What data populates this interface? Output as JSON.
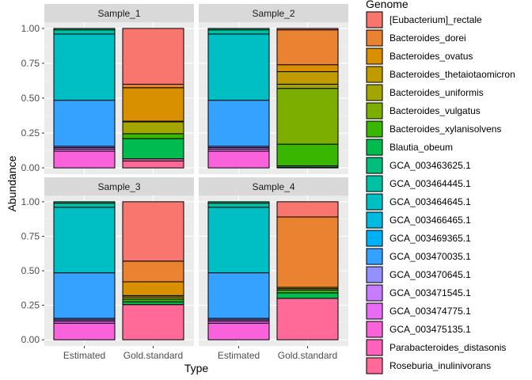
{
  "chart_data": {
    "type": "bar",
    "stacked": true,
    "xlabel": "Type",
    "ylabel": "Abundance",
    "categories": [
      "Estimated",
      "Gold.standard"
    ],
    "ylim": [
      0,
      1
    ],
    "yticks": [
      "0.00",
      "0.25",
      "0.50",
      "0.75",
      "1.00"
    ],
    "legend": {
      "title": "Genome",
      "position": "right",
      "entries": [
        {
          "name": "[Eubacterium]_rectale",
          "color": "#F8766D"
        },
        {
          "name": "Bacteroides_dorei",
          "color": "#EA8331"
        },
        {
          "name": "Bacteroides_ovatus",
          "color": "#D89000"
        },
        {
          "name": "Bacteroides_thetaiotaomicron",
          "color": "#C09B00"
        },
        {
          "name": "Bacteroides_uniformis",
          "color": "#A3A500"
        },
        {
          "name": "Bacteroides_vulgatus",
          "color": "#7CAE00"
        },
        {
          "name": "Bacteroides_xylanisolvens",
          "color": "#39B600"
        },
        {
          "name": "Blautia_obeum",
          "color": "#00BB4E"
        },
        {
          "name": "GCA_003463625.1",
          "color": "#00BF7D"
        },
        {
          "name": "GCA_003464445.1",
          "color": "#00C1A3"
        },
        {
          "name": "GCA_003464645.1",
          "color": "#00BFC4"
        },
        {
          "name": "GCA_003466465.1",
          "color": "#00BAE0"
        },
        {
          "name": "GCA_003469365.1",
          "color": "#00B0F6"
        },
        {
          "name": "GCA_003470035.1",
          "color": "#35A2FF"
        },
        {
          "name": "GCA_003470645.1",
          "color": "#9590FF"
        },
        {
          "name": "GCA_003471545.1",
          "color": "#C77CFF"
        },
        {
          "name": "GCA_003474775.1",
          "color": "#E76BF3"
        },
        {
          "name": "GCA_003475135.1",
          "color": "#FA62DB"
        },
        {
          "name": "Parabacteroides_distasonis",
          "color": "#FF62BC"
        },
        {
          "name": "Roseburia_inulinivorans",
          "color": "#FF6A98"
        }
      ]
    },
    "panels": [
      {
        "title": "Sample_1",
        "bars": {
          "Estimated": [
            {
              "genome": "GCA_003475135.1",
              "value": 0.12
            },
            {
              "genome": "GCA_003474775.1",
              "value": 0.015
            },
            {
              "genome": "GCA_003471545.1",
              "value": 0.01
            },
            {
              "genome": "GCA_003470645.1",
              "value": 0.01
            },
            {
              "genome": "GCA_003470035.1",
              "value": 0.33
            },
            {
              "genome": "GCA_003464645.1",
              "value": 0.475
            },
            {
              "genome": "GCA_003464445.1",
              "value": 0.03
            },
            {
              "genome": "GCA_003463625.1",
              "value": 0.01
            }
          ],
          "Gold.standard": [
            {
              "genome": "Roseburia_inulinivorans",
              "value": 0.05
            },
            {
              "genome": "Parabacteroides_distasonis",
              "value": 0.015
            },
            {
              "genome": "Blautia_obeum",
              "value": 0.145
            },
            {
              "genome": "Bacteroides_xylanisolvens",
              "value": 0.035
            },
            {
              "genome": "Bacteroides_uniformis",
              "value": 0.085
            },
            {
              "genome": "Bacteroides_thetaiotaomicron",
              "value": 0.005
            },
            {
              "genome": "Bacteroides_ovatus",
              "value": 0.24
            },
            {
              "genome": "Bacteroides_dorei",
              "value": 0.025
            },
            {
              "genome": "[Eubacterium]_rectale",
              "value": 0.4
            }
          ]
        }
      },
      {
        "title": "Sample_2",
        "bars": {
          "Estimated": [
            {
              "genome": "GCA_003475135.1",
              "value": 0.12
            },
            {
              "genome": "GCA_003474775.1",
              "value": 0.015
            },
            {
              "genome": "GCA_003471545.1",
              "value": 0.01
            },
            {
              "genome": "GCA_003470645.1",
              "value": 0.01
            },
            {
              "genome": "GCA_003470035.1",
              "value": 0.33
            },
            {
              "genome": "GCA_003464645.1",
              "value": 0.475
            },
            {
              "genome": "GCA_003464445.1",
              "value": 0.03
            },
            {
              "genome": "GCA_003463625.1",
              "value": 0.01
            }
          ],
          "Gold.standard": [
            {
              "genome": "Blautia_obeum",
              "value": 0.01
            },
            {
              "genome": "Parabacteroides_distasonis",
              "value": 0.005
            },
            {
              "genome": "Bacteroides_xylanisolvens",
              "value": 0.155
            },
            {
              "genome": "Bacteroides_vulgatus",
              "value": 0.4
            },
            {
              "genome": "Bacteroides_uniformis",
              "value": 0.03
            },
            {
              "genome": "Bacteroides_thetaiotaomicron",
              "value": 0.09
            },
            {
              "genome": "Bacteroides_ovatus",
              "value": 0.05
            },
            {
              "genome": "Bacteroides_dorei",
              "value": 0.25
            },
            {
              "genome": "[Eubacterium]_rectale",
              "value": 0.01
            }
          ]
        }
      },
      {
        "title": "Sample_3",
        "bars": {
          "Estimated": [
            {
              "genome": "GCA_003475135.1",
              "value": 0.12
            },
            {
              "genome": "GCA_003474775.1",
              "value": 0.015
            },
            {
              "genome": "GCA_003471545.1",
              "value": 0.01
            },
            {
              "genome": "GCA_003470645.1",
              "value": 0.01
            },
            {
              "genome": "GCA_003470035.1",
              "value": 0.33
            },
            {
              "genome": "GCA_003464645.1",
              "value": 0.475
            },
            {
              "genome": "GCA_003464445.1",
              "value": 0.03
            },
            {
              "genome": "GCA_003463625.1",
              "value": 0.01
            }
          ],
          "Gold.standard": [
            {
              "genome": "Roseburia_inulinivorans",
              "value": 0.255
            },
            {
              "genome": "Blautia_obeum",
              "value": 0.02
            },
            {
              "genome": "Bacteroides_xylanisolvens",
              "value": 0.02
            },
            {
              "genome": "Bacteroides_uniformis",
              "value": 0.015
            },
            {
              "genome": "Bacteroides_thetaiotaomicron",
              "value": 0.01
            },
            {
              "genome": "Bacteroides_ovatus",
              "value": 0.1
            },
            {
              "genome": "Bacteroides_dorei",
              "value": 0.15
            },
            {
              "genome": "[Eubacterium]_rectale",
              "value": 0.43
            }
          ]
        }
      },
      {
        "title": "Sample_4",
        "bars": {
          "Estimated": [
            {
              "genome": "GCA_003475135.1",
              "value": 0.12
            },
            {
              "genome": "GCA_003474775.1",
              "value": 0.015
            },
            {
              "genome": "GCA_003471545.1",
              "value": 0.01
            },
            {
              "genome": "GCA_003470645.1",
              "value": 0.01
            },
            {
              "genome": "GCA_003470035.1",
              "value": 0.33
            },
            {
              "genome": "GCA_003464645.1",
              "value": 0.475
            },
            {
              "genome": "GCA_003464445.1",
              "value": 0.03
            },
            {
              "genome": "GCA_003463625.1",
              "value": 0.01
            }
          ],
          "Gold.standard": [
            {
              "genome": "Roseburia_inulinivorans",
              "value": 0.3
            },
            {
              "genome": "Blautia_obeum",
              "value": 0.04
            },
            {
              "genome": "Bacteroides_xylanisolvens",
              "value": 0.02
            },
            {
              "genome": "Bacteroides_uniformis",
              "value": 0.01
            },
            {
              "genome": "Bacteroides_thetaiotaomicron",
              "value": 0.01
            },
            {
              "genome": "Bacteroides_dorei",
              "value": 0.51
            },
            {
              "genome": "[Eubacterium]_rectale",
              "value": 0.11
            }
          ]
        }
      }
    ]
  }
}
